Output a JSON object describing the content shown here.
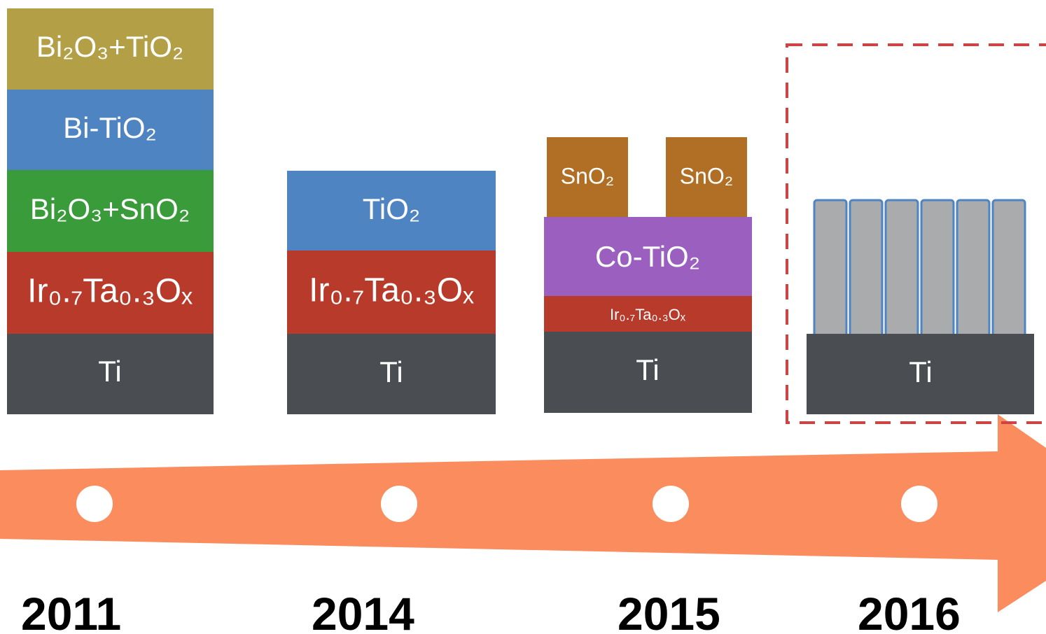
{
  "columns": [
    {
      "year": "2011",
      "layers": [
        "Bi₂O₃+TiO₂",
        "Bi-TiO₂",
        "Bi₂O₃+SnO₂",
        "Ir₀.₇Ta₀.₃Oₓ",
        "Ti"
      ]
    },
    {
      "year": "2014",
      "layers": [
        "TiO₂",
        "Ir₀.₇Ta₀.₃Oₓ",
        "Ti"
      ]
    },
    {
      "year": "2015",
      "top": [
        "SnO₂",
        "SnO₂"
      ],
      "layers": [
        "Co-TiO₂",
        "Ir₀.₇Ta₀.₃Oₓ",
        "Ti"
      ]
    },
    {
      "year": "2016",
      "layers": [
        "Ti"
      ]
    }
  ]
}
